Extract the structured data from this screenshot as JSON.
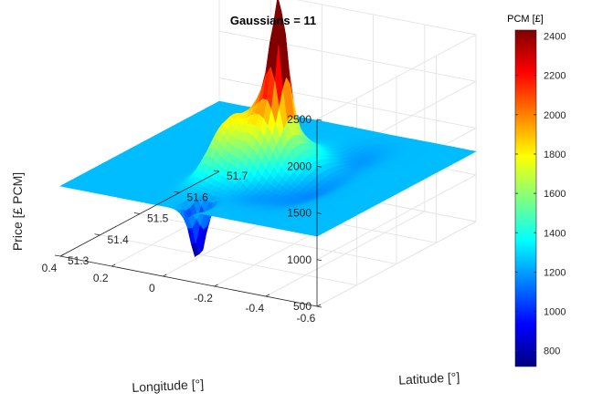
{
  "chart_data": {
    "type": "surface",
    "title": "Gaussians = 11",
    "xlabel": "Longitude [°]",
    "ylabel": "Latitude [°]",
    "zlabel": "Price [£ PCM]",
    "colorbar_label": "PCM [£]",
    "colormap": "jet",
    "xlim": [
      -0.6,
      0.4
    ],
    "ylim": [
      51.3,
      51.7
    ],
    "zlim": [
      500,
      2500
    ],
    "clim": [
      720,
      2430
    ],
    "baseline": 1250,
    "grid": true,
    "x_ticks": [
      "-0.6",
      "-0.4",
      "-0.2",
      "0",
      "0.2",
      "0.4"
    ],
    "y_ticks": [
      "51.3",
      "51.4",
      "51.5",
      "51.6",
      "51.7"
    ],
    "z_ticks": [
      "500",
      "1000",
      "1500",
      "2000",
      "2500"
    ],
    "colorbar_ticks": [
      "800",
      "1000",
      "1200",
      "1400",
      "1600",
      "1800",
      "2000",
      "2200",
      "2400"
    ],
    "gaussians": [
      {
        "x": -0.12,
        "y": 51.515,
        "amp": 1150,
        "sx": 0.022,
        "sy": 0.014
      },
      {
        "x": -0.1,
        "y": 51.5,
        "amp": 520,
        "sx": 0.06,
        "sy": 0.04
      },
      {
        "x": -0.06,
        "y": 51.525,
        "amp": 300,
        "sx": 0.035,
        "sy": 0.03
      },
      {
        "x": 0.01,
        "y": 51.47,
        "amp": 420,
        "sx": 0.03,
        "sy": 0.045
      },
      {
        "x": -0.18,
        "y": 51.52,
        "amp": 180,
        "sx": 0.09,
        "sy": 0.05
      },
      {
        "x": -0.05,
        "y": 51.44,
        "amp": 150,
        "sx": 0.05,
        "sy": 0.03
      },
      {
        "x": -0.32,
        "y": 51.48,
        "amp": -110,
        "sx": 0.05,
        "sy": 0.06
      },
      {
        "x": -0.2,
        "y": 51.43,
        "amp": -90,
        "sx": 0.06,
        "sy": 0.04
      },
      {
        "x": -0.28,
        "y": 51.6,
        "amp": -70,
        "sx": 0.06,
        "sy": 0.04
      },
      {
        "x": 0.05,
        "y": 51.58,
        "amp": -80,
        "sx": 0.05,
        "sy": 0.03
      },
      {
        "x": -0.09,
        "y": 51.33,
        "amp": -600,
        "sx": 0.02,
        "sy": 0.015
      }
    ]
  }
}
